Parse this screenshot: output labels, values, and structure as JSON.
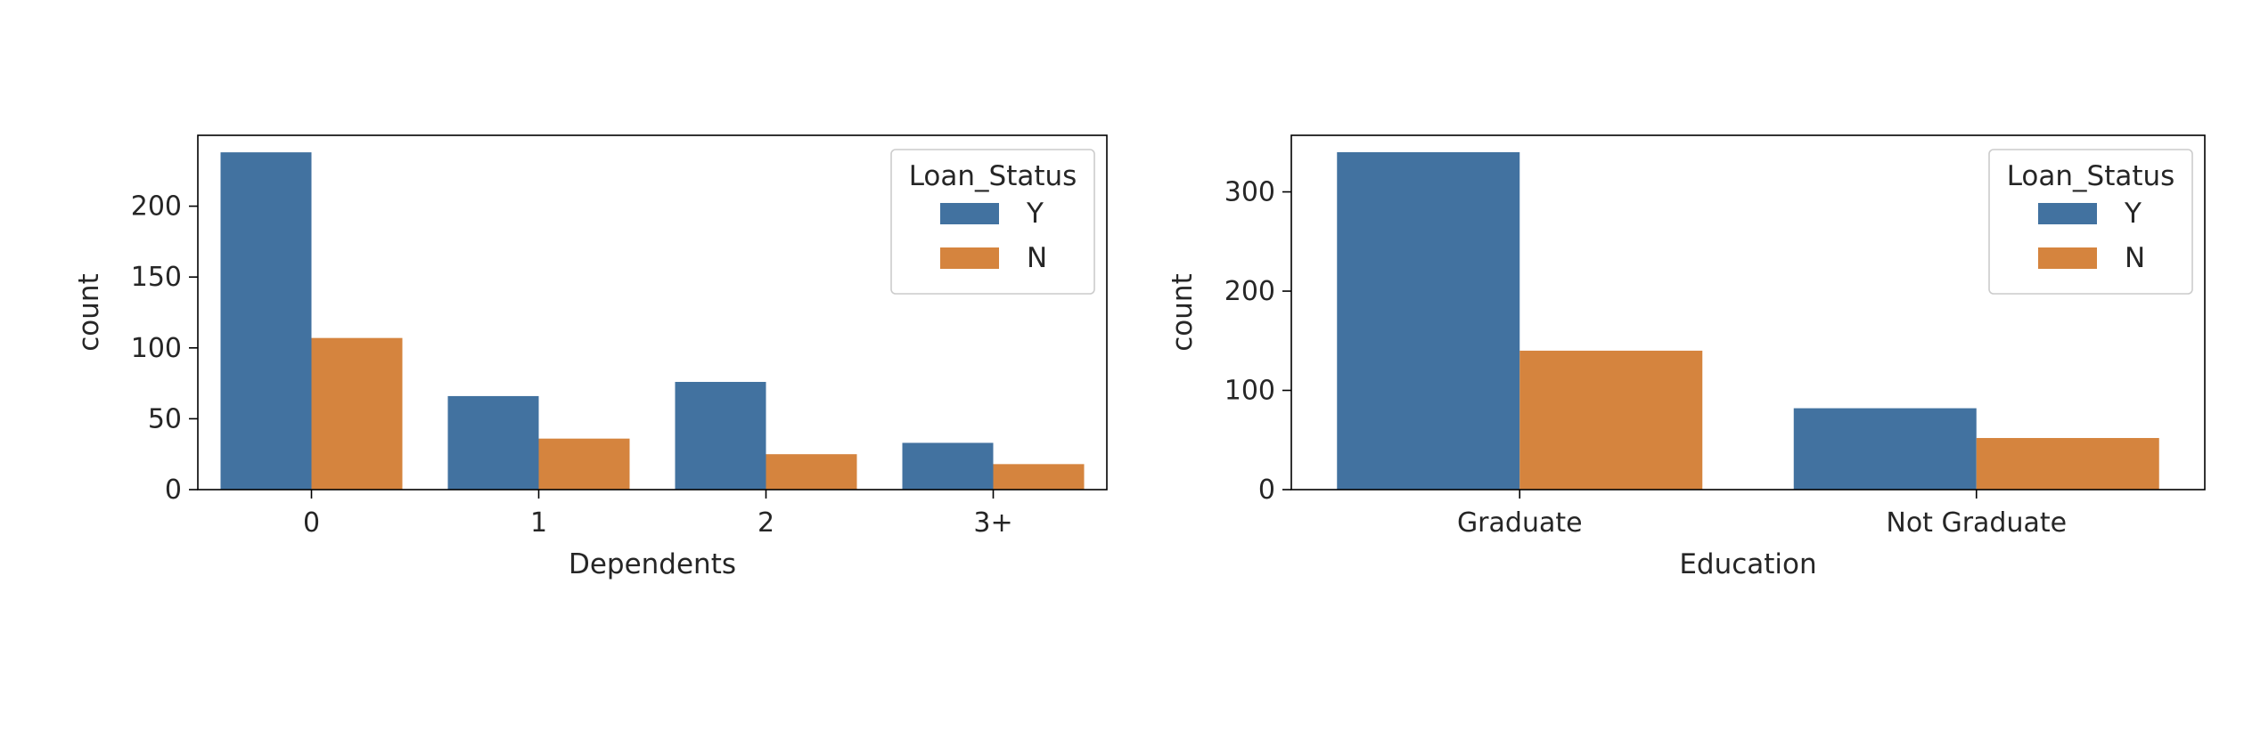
{
  "chart_data": [
    {
      "type": "bar",
      "xlabel": "Dependents",
      "ylabel": "count",
      "categories": [
        "0",
        "1",
        "2",
        "3+"
      ],
      "series": [
        {
          "name": "Y",
          "values": [
            238,
            66,
            76,
            33
          ]
        },
        {
          "name": "N",
          "values": [
            107,
            36,
            25,
            18
          ]
        }
      ],
      "ylim": [
        0,
        250
      ],
      "yticks": [
        0,
        50,
        100,
        150,
        200
      ],
      "legend": {
        "title": "Loan_Status",
        "position": "top-right"
      },
      "colors": [
        "#4272a0",
        "#d5843e"
      ],
      "grid": false
    },
    {
      "type": "bar",
      "xlabel": "Education",
      "ylabel": "count",
      "categories": [
        "Graduate",
        "Not Graduate"
      ],
      "series": [
        {
          "name": "Y",
          "values": [
            340,
            82
          ]
        },
        {
          "name": "N",
          "values": [
            140,
            52
          ]
        }
      ],
      "ylim": [
        0,
        357
      ],
      "yticks": [
        0,
        100,
        200,
        300
      ],
      "legend": {
        "title": "Loan_Status",
        "position": "top-right"
      },
      "colors": [
        "#4272a0",
        "#d5843e"
      ],
      "grid": false
    }
  ]
}
